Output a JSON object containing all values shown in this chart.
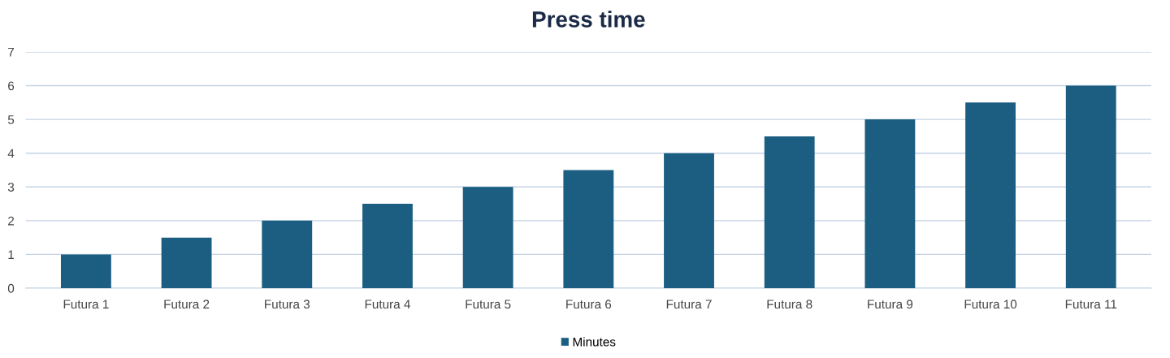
{
  "chart_data": {
    "type": "bar",
    "title": "Press time",
    "categories": [
      "Futura 1",
      "Futura 2",
      "Futura 3",
      "Futura 4",
      "Futura 5",
      "Futura 6",
      "Futura 7",
      "Futura 8",
      "Futura 9",
      "Futura 10",
      "Futura 11"
    ],
    "series": [
      {
        "name": "Minutes",
        "color": "#1b5e82",
        "values": [
          1,
          1.5,
          2,
          2.5,
          3,
          3.5,
          4,
          4.5,
          5,
          5.5,
          6
        ]
      }
    ],
    "ylim": [
      0,
      7
    ],
    "yticks": [
      0,
      1,
      2,
      3,
      4,
      5,
      6,
      7
    ],
    "grid": "y",
    "legend": "bottom"
  }
}
